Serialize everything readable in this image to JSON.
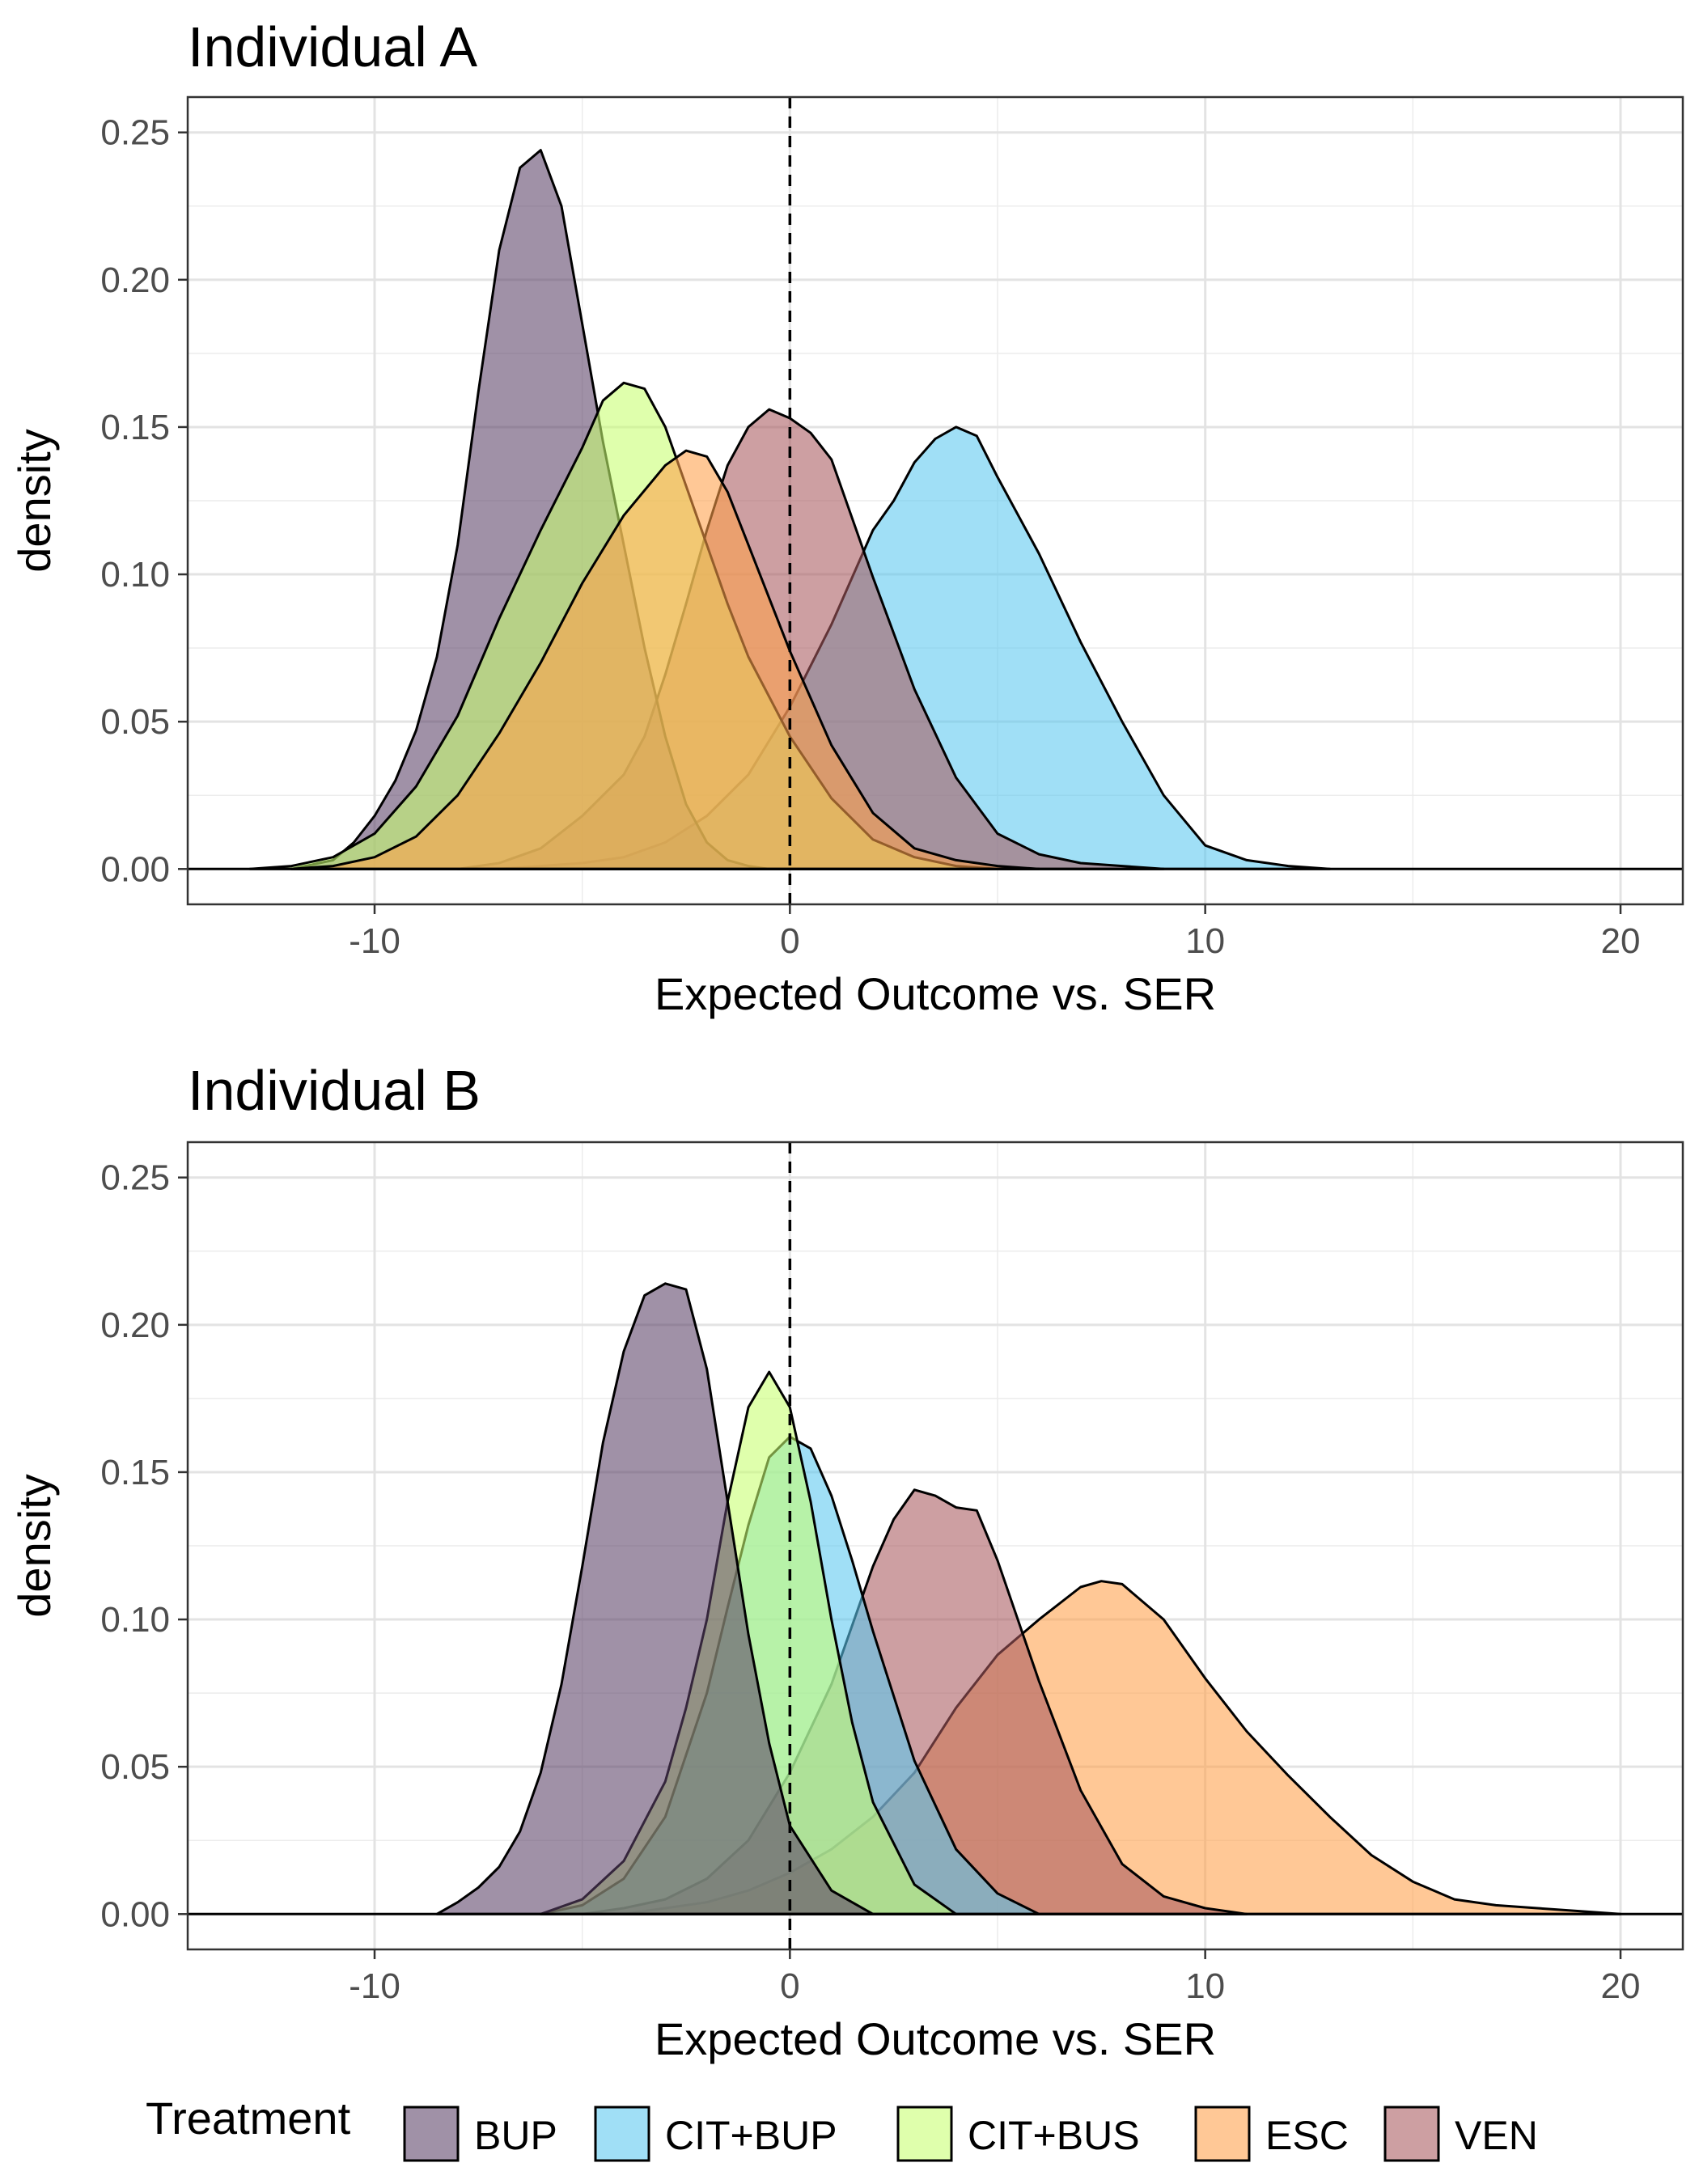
{
  "chart_data": [
    {
      "type": "area",
      "title": "Individual A",
      "xlabel": "Expected Outcome vs. SER",
      "ylabel": "density",
      "xlim": [
        -14.5,
        21.5
      ],
      "ylim": [
        -0.012,
        0.262
      ],
      "x_ticks": [
        -10,
        0,
        10,
        20
      ],
      "x_tick_labels": [
        "-10",
        "0",
        "10",
        "20"
      ],
      "y_ticks": [
        0,
        0.05,
        0.1,
        0.15,
        0.2,
        0.25
      ],
      "y_tick_labels": [
        "0.00",
        "0.05",
        "0.10",
        "0.15",
        "0.20",
        "0.25"
      ],
      "reference_line_x": 0,
      "grid": true,
      "series": [
        {
          "name": "CIT+BUP",
          "color": "#5BC8F0",
          "x": [
            -7,
            -6,
            -5,
            -4,
            -3,
            -2,
            -1,
            0,
            1,
            2,
            2.5,
            3,
            3.5,
            4,
            4.5,
            5,
            6,
            7,
            8,
            9,
            10,
            11,
            12,
            13
          ],
          "y": [
            0.0,
            0.001,
            0.002,
            0.004,
            0.009,
            0.018,
            0.032,
            0.055,
            0.083,
            0.115,
            0.125,
            0.138,
            0.146,
            0.15,
            0.147,
            0.133,
            0.107,
            0.077,
            0.05,
            0.025,
            0.008,
            0.003,
            0.001,
            0.0
          ]
        },
        {
          "name": "VEN",
          "color": "#A85A5E",
          "x": [
            -8,
            -7,
            -6,
            -5,
            -4,
            -3.5,
            -3,
            -2.5,
            -2,
            -1.5,
            -1,
            -0.5,
            0,
            0.5,
            1,
            2,
            3,
            4,
            5,
            6,
            7,
            8,
            9
          ],
          "y": [
            0.0,
            0.002,
            0.007,
            0.018,
            0.032,
            0.045,
            0.066,
            0.09,
            0.115,
            0.137,
            0.15,
            0.156,
            0.153,
            0.148,
            0.139,
            0.099,
            0.061,
            0.031,
            0.012,
            0.005,
            0.002,
            0.001,
            0.0
          ]
        },
        {
          "name": "BUP",
          "color": "#5B4268",
          "x": [
            -12,
            -11,
            -10.5,
            -10,
            -9.5,
            -9,
            -8.5,
            -8,
            -7.5,
            -7,
            -6.5,
            -6,
            -5.5,
            -5,
            -4.5,
            -4,
            -3.5,
            -3,
            -2.5,
            -2,
            -1.5,
            -1,
            -0.5,
            0
          ],
          "y": [
            0.0,
            0.003,
            0.009,
            0.018,
            0.03,
            0.047,
            0.072,
            0.11,
            0.162,
            0.21,
            0.238,
            0.244,
            0.225,
            0.185,
            0.145,
            0.11,
            0.075,
            0.045,
            0.022,
            0.009,
            0.003,
            0.001,
            0.0,
            0.0
          ]
        },
        {
          "name": "CIT+BUS",
          "color": "#C8FF70",
          "x": [
            -13,
            -12,
            -11,
            -10,
            -9,
            -8,
            -7,
            -6,
            -5,
            -4.5,
            -4,
            -3.5,
            -3,
            -2.5,
            -2,
            -1.5,
            -1,
            0,
            1,
            2,
            3,
            4,
            5
          ],
          "y": [
            0.0,
            0.001,
            0.004,
            0.012,
            0.028,
            0.052,
            0.085,
            0.115,
            0.143,
            0.159,
            0.165,
            0.163,
            0.15,
            0.13,
            0.11,
            0.09,
            0.072,
            0.045,
            0.024,
            0.01,
            0.004,
            0.001,
            0.0
          ]
        },
        {
          "name": "ESC",
          "color": "#FFA04A",
          "x": [
            -12,
            -11,
            -10,
            -9,
            -8,
            -7,
            -6,
            -5,
            -4,
            -3,
            -2.5,
            -2,
            -1.5,
            -1,
            0,
            1,
            2,
            3,
            4,
            5,
            6
          ],
          "y": [
            0.0,
            0.001,
            0.004,
            0.011,
            0.025,
            0.046,
            0.07,
            0.097,
            0.12,
            0.137,
            0.142,
            0.14,
            0.128,
            0.11,
            0.074,
            0.042,
            0.019,
            0.007,
            0.003,
            0.001,
            0.0
          ]
        }
      ]
    },
    {
      "type": "area",
      "title": "Individual B",
      "xlabel": "Expected Outcome vs. SER",
      "ylabel": "density",
      "xlim": [
        -14.5,
        21.5
      ],
      "ylim": [
        -0.012,
        0.262
      ],
      "x_ticks": [
        -10,
        0,
        10,
        20
      ],
      "x_tick_labels": [
        "-10",
        "0",
        "10",
        "20"
      ],
      "y_ticks": [
        0,
        0.05,
        0.1,
        0.15,
        0.2,
        0.25
      ],
      "y_tick_labels": [
        "0.00",
        "0.05",
        "0.10",
        "0.15",
        "0.20",
        "0.25"
      ],
      "reference_line_x": 0,
      "grid": true,
      "series": [
        {
          "name": "ESC",
          "color": "#FFA04A",
          "x": [
            -4,
            -3,
            -2,
            -1,
            0,
            1,
            2,
            3,
            4,
            5,
            6,
            7,
            7.5,
            8,
            9,
            10,
            11,
            12,
            13,
            14,
            15,
            16,
            17,
            18,
            19,
            20
          ],
          "y": [
            0.0,
            0.002,
            0.004,
            0.008,
            0.014,
            0.022,
            0.033,
            0.048,
            0.07,
            0.088,
            0.1,
            0.111,
            0.113,
            0.112,
            0.1,
            0.08,
            0.062,
            0.047,
            0.033,
            0.02,
            0.011,
            0.005,
            0.003,
            0.002,
            0.001,
            0.0
          ]
        },
        {
          "name": "VEN",
          "color": "#A85A5E",
          "x": [
            -5,
            -4,
            -3,
            -2,
            -1,
            0,
            1,
            2,
            2.5,
            3,
            3.5,
            4,
            4.5,
            5,
            6,
            7,
            8,
            9,
            10,
            11
          ],
          "y": [
            0.0,
            0.002,
            0.005,
            0.012,
            0.025,
            0.048,
            0.078,
            0.118,
            0.134,
            0.144,
            0.142,
            0.138,
            0.137,
            0.12,
            0.079,
            0.042,
            0.017,
            0.006,
            0.002,
            0.0
          ]
        },
        {
          "name": "CIT+BUP",
          "color": "#5BC8F0",
          "x": [
            -6,
            -5,
            -4,
            -3,
            -2,
            -1.5,
            -1,
            -0.5,
            0,
            0.5,
            1,
            1.5,
            2,
            3,
            4,
            5,
            6
          ],
          "y": [
            0.0,
            0.003,
            0.012,
            0.033,
            0.075,
            0.104,
            0.132,
            0.155,
            0.162,
            0.158,
            0.142,
            0.12,
            0.096,
            0.052,
            0.022,
            0.007,
            0.0
          ]
        },
        {
          "name": "CIT+BUS",
          "color": "#C8FF70",
          "x": [
            -6,
            -5,
            -4,
            -3,
            -2.5,
            -2,
            -1.5,
            -1,
            -0.5,
            0,
            0.5,
            1,
            1.5,
            2,
            3,
            4
          ],
          "y": [
            0.0,
            0.005,
            0.018,
            0.045,
            0.07,
            0.1,
            0.14,
            0.172,
            0.184,
            0.172,
            0.14,
            0.1,
            0.065,
            0.038,
            0.01,
            0.0
          ]
        },
        {
          "name": "BUP",
          "color": "#5B4268",
          "x": [
            -8.5,
            -8,
            -7.5,
            -7,
            -6.5,
            -6,
            -5.5,
            -5,
            -4.5,
            -4,
            -3.5,
            -3,
            -2.5,
            -2,
            -1.5,
            -1,
            -0.5,
            0,
            1,
            2
          ],
          "y": [
            0.0,
            0.004,
            0.009,
            0.016,
            0.028,
            0.048,
            0.078,
            0.118,
            0.16,
            0.191,
            0.21,
            0.214,
            0.212,
            0.185,
            0.14,
            0.095,
            0.058,
            0.03,
            0.008,
            0.0
          ]
        }
      ]
    }
  ],
  "legend": {
    "title": "Treatment",
    "items": [
      {
        "label": "BUP",
        "color": "#5B4268"
      },
      {
        "label": "CIT+BUP",
        "color": "#5BC8F0"
      },
      {
        "label": "CIT+BUS",
        "color": "#C8FF70"
      },
      {
        "label": "ESC",
        "color": "#FFA04A"
      },
      {
        "label": "VEN",
        "color": "#A85A5E"
      }
    ]
  }
}
